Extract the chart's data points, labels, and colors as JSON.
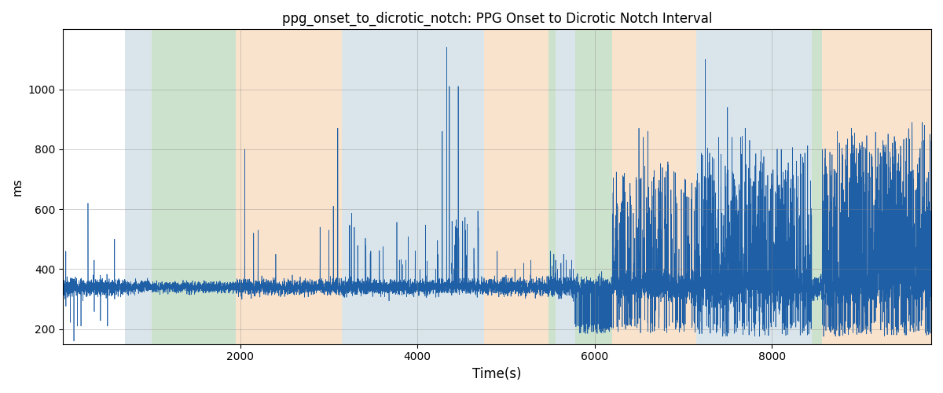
{
  "title": "ppg_onset_to_dicrotic_notch: PPG Onset to Dicrotic Notch Interval",
  "xlabel": "Time(s)",
  "ylabel": "ms",
  "xlim": [
    0,
    9800
  ],
  "ylim": [
    150,
    1200
  ],
  "yticks": [
    200,
    400,
    600,
    800,
    1000
  ],
  "xticks": [
    2000,
    4000,
    6000,
    8000
  ],
  "figsize": [
    12,
    5
  ],
  "dpi": 100,
  "line_color": "#1f5fa6",
  "background_color": "#ffffff",
  "colored_bands": [
    {
      "xmin": 700,
      "xmax": 1000,
      "color": "#aec6d4",
      "alpha": 0.45
    },
    {
      "xmin": 1000,
      "xmax": 1950,
      "color": "#90c090",
      "alpha": 0.45
    },
    {
      "xmin": 1950,
      "xmax": 3150,
      "color": "#f7c89a",
      "alpha": 0.5
    },
    {
      "xmin": 3150,
      "xmax": 4750,
      "color": "#aec6d4",
      "alpha": 0.45
    },
    {
      "xmin": 4750,
      "xmax": 5480,
      "color": "#f7c89a",
      "alpha": 0.5
    },
    {
      "xmin": 5480,
      "xmax": 5560,
      "color": "#90c090",
      "alpha": 0.45
    },
    {
      "xmin": 5560,
      "xmax": 5780,
      "color": "#aec6d4",
      "alpha": 0.45
    },
    {
      "xmin": 5780,
      "xmax": 6200,
      "color": "#90c090",
      "alpha": 0.45
    },
    {
      "xmin": 6200,
      "xmax": 7150,
      "color": "#f7c89a",
      "alpha": 0.5
    },
    {
      "xmin": 7150,
      "xmax": 8450,
      "color": "#aec6d4",
      "alpha": 0.45
    },
    {
      "xmin": 8450,
      "xmax": 8570,
      "color": "#90c090",
      "alpha": 0.45
    },
    {
      "xmin": 8570,
      "xmax": 9800,
      "color": "#f7c89a",
      "alpha": 0.5
    }
  ]
}
